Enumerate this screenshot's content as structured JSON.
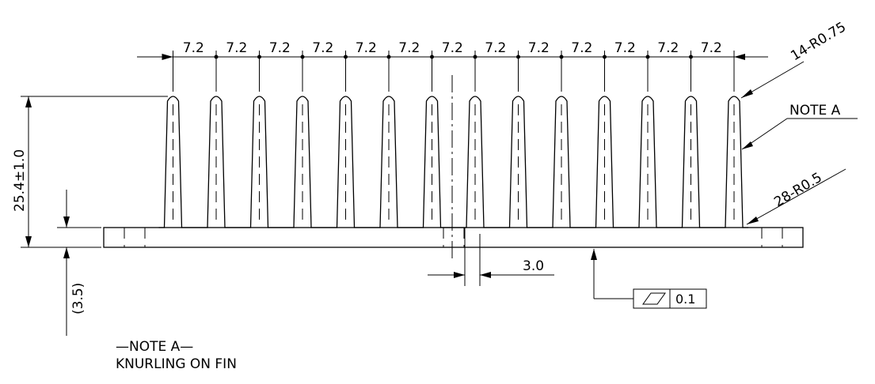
{
  "fin_pitch_label": "7.2",
  "fin_count": 14,
  "fin_radius_label": "14-R0.75",
  "root_radius_label": "28-R0.5",
  "note_ref_label": "NOTE A",
  "height_label": "25.4±1.0",
  "base_thickness_label": "(3.5)",
  "gap_label": "3.0",
  "flatness_tolerance": "0.1",
  "note": {
    "title": "—NOTE A—",
    "text": "KNURLING ON FIN"
  }
}
